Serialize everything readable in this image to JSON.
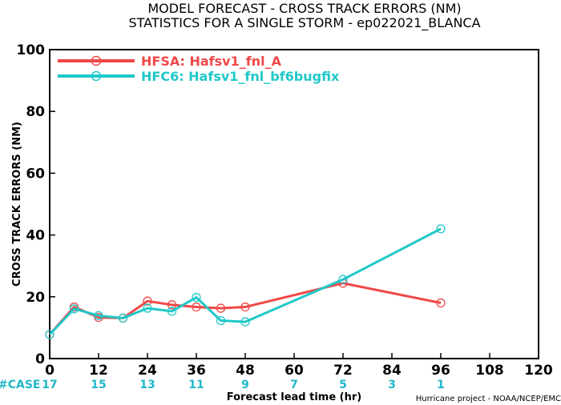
{
  "title_line1": "MODEL FORECAST - CROSS TRACK ERRORS (NM)",
  "title_line2": "STATISTICS FOR A SINGLE STORM - ep022021_BLANCA",
  "credit": "Hurricane project - NOAA/NCEP/EMC",
  "case_prefix": "#CASE",
  "case_counts": [
    {
      "x": 0,
      "label": "17"
    },
    {
      "x": 12,
      "label": "15"
    },
    {
      "x": 24,
      "label": "13"
    },
    {
      "x": 36,
      "label": "11"
    },
    {
      "x": 48,
      "label": "9"
    },
    {
      "x": 60,
      "label": "7"
    },
    {
      "x": 72,
      "label": "5"
    },
    {
      "x": 84,
      "label": "3"
    },
    {
      "x": 96,
      "label": "1"
    }
  ],
  "colors": {
    "hfsa": "#f04848",
    "hfc6": "#20c8c8",
    "case_color": "#20b8c8",
    "case_prefix_color": "#20b8c8"
  },
  "chart_data": {
    "type": "line",
    "title": "MODEL FORECAST - CROSS TRACK ERRORS (NM)",
    "subtitle": "STATISTICS FOR A SINGLE STORM - ep022021_BLANCA",
    "xlabel": "Forecast lead time (hr)",
    "ylabel": "CROSS TRACK ERRORS (NM)",
    "xlim": [
      0,
      120
    ],
    "ylim": [
      0,
      100
    ],
    "xticks": [
      0,
      12,
      24,
      36,
      48,
      60,
      72,
      84,
      96,
      108,
      120
    ],
    "yticks": [
      0,
      20,
      40,
      60,
      80,
      100
    ],
    "grid": false,
    "legend_position": "top-left",
    "series": [
      {
        "name": "HFSA: Hafsv1_fnl_A",
        "color_key": "hfsa",
        "x": [
          0,
          6,
          12,
          18,
          24,
          30,
          36,
          42,
          48,
          72,
          96
        ],
        "y": [
          7.8,
          16.7,
          13.3,
          13.1,
          18.6,
          17.4,
          16.7,
          16.3,
          16.7,
          24.4,
          18.0
        ]
      },
      {
        "name": "HFC6: Hafsv1_fnl_bf6bugfix",
        "color_key": "hfc6",
        "x": [
          0,
          6,
          12,
          18,
          24,
          30,
          36,
          42,
          48,
          72,
          96
        ],
        "y": [
          7.8,
          16.1,
          13.9,
          13.1,
          16.3,
          15.3,
          19.8,
          12.3,
          11.9,
          25.6,
          42.0
        ]
      }
    ]
  }
}
